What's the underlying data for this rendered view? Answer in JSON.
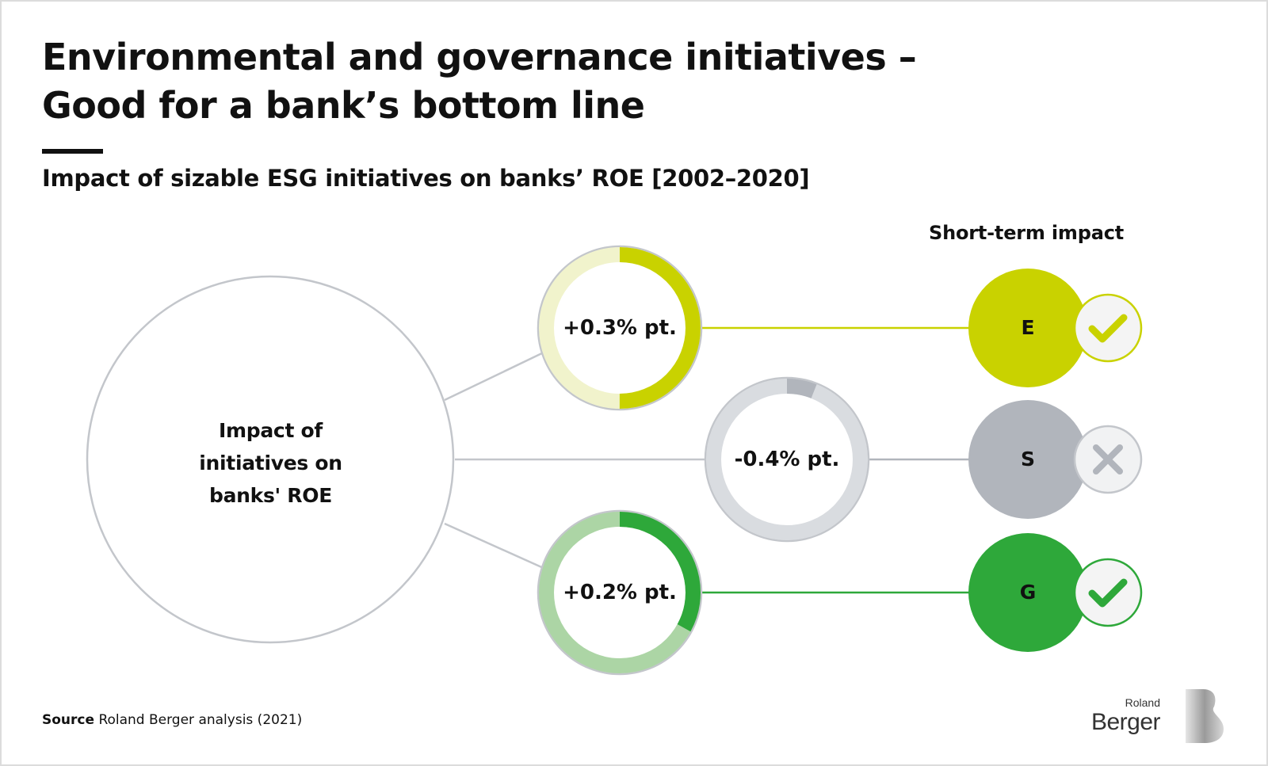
{
  "header": {
    "title_line1": "Environmental and governance initiatives –",
    "title_line2": "Good for a bank’s bottom line",
    "subtitle": "Impact of sizable ESG initiatives on banks’ ROE [2002–2020]"
  },
  "diagram": {
    "center_label_lines": [
      "Impact of",
      "initiatives on",
      "banks' ROE"
    ],
    "short_term_header": "Short-term impact",
    "items": [
      {
        "letter": "E",
        "impact_label": "+0.3% pt.",
        "impact_fraction": 0.5,
        "short_term": "positive",
        "status_icon": "check-icon",
        "color": "#c9d200",
        "track_color": "#f1f3cc"
      },
      {
        "letter": "S",
        "impact_label": "-0.4% pt.",
        "impact_fraction": 0.06,
        "short_term": "negative",
        "status_icon": "cross-icon",
        "color": "#b1b5bc",
        "track_color": "#d9dce0"
      },
      {
        "letter": "G",
        "impact_label": "+0.2% pt.",
        "impact_fraction": 0.33,
        "short_term": "positive",
        "status_icon": "check-icon",
        "color": "#2ea83a",
        "track_color": "#acd5a5"
      }
    ]
  },
  "footer": {
    "source_label": "Source",
    "source_text": "Roland Berger analysis (2021)"
  },
  "logo": {
    "line1": "Roland",
    "line2": "Berger"
  }
}
